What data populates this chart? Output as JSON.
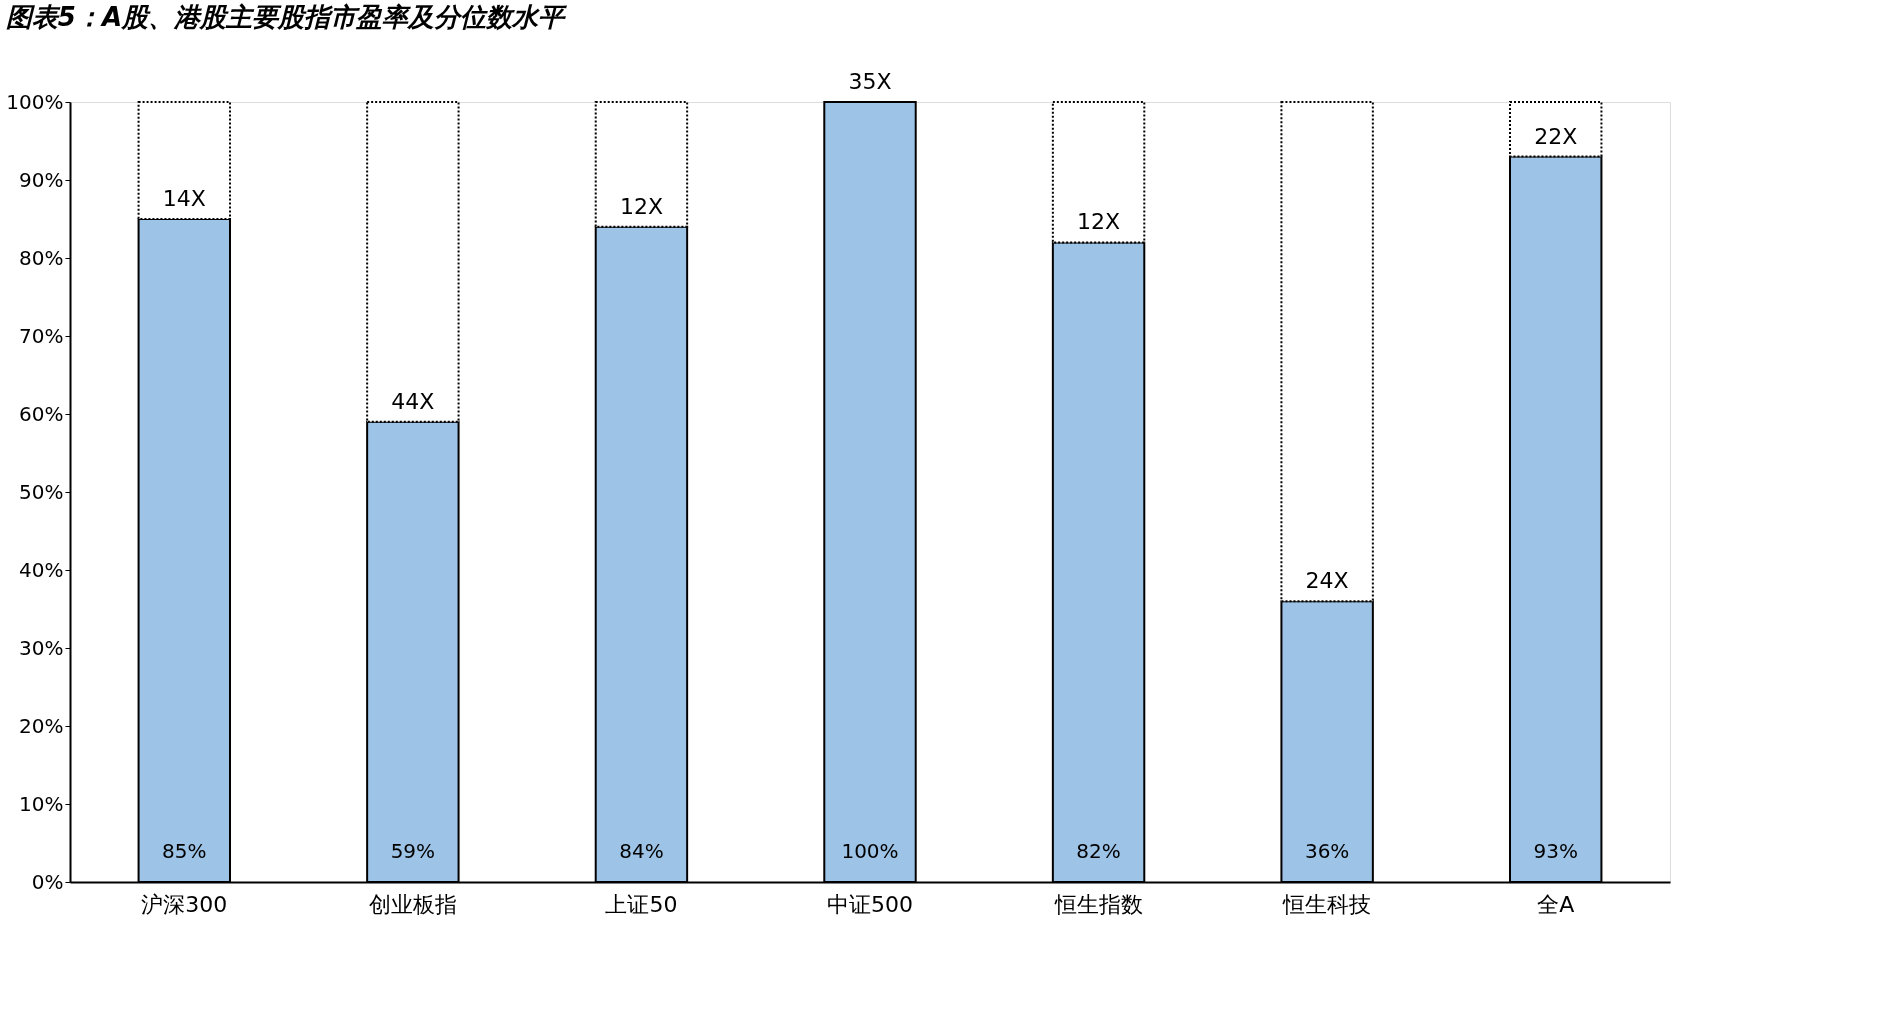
{
  "chart_data": {
    "type": "bar",
    "stacked": true,
    "title": "图表5：A股、港股主要股指市盈率及分位数水平",
    "categories": [
      "沪深300",
      "创业板指",
      "上证50",
      "中证500",
      "恒生指数",
      "恒生科技",
      "全A"
    ],
    "series": [
      {
        "color": "#9dc3e6",
        "line_style": "solid",
        "values": [
          85,
          59,
          84,
          100,
          82,
          36,
          93
        ],
        "value_labels": [
          "85%",
          "59%",
          "84%",
          "100%",
          "82%",
          "36%",
          "93%"
        ]
      },
      {
        "color": "#ffffff",
        "line_style": "dotted",
        "values": [
          15,
          41,
          16,
          0,
          18,
          64,
          7
        ]
      }
    ],
    "annotations": [
      {
        "text": "14X",
        "x": "沪深300",
        "y": 85
      },
      {
        "text": "44X",
        "x": "创业板指",
        "y": 59
      },
      {
        "text": "12X",
        "x": "上证50",
        "y": 84
      },
      {
        "text": "35X",
        "x": "中证500",
        "y": 100
      },
      {
        "text": "12X",
        "x": "恒生指数",
        "y": 82
      },
      {
        "text": "24X",
        "x": "恒生科技",
        "y": 36
      },
      {
        "text": "22X",
        "x": "全A",
        "y": 93
      }
    ],
    "ylim": [
      0,
      100
    ],
    "yticks": [
      {
        "value": 0,
        "label": "0%"
      },
      {
        "value": 10,
        "label": "10%"
      },
      {
        "value": 20,
        "label": "20%"
      },
      {
        "value": 30,
        "label": "30%"
      },
      {
        "value": 40,
        "label": "40%"
      },
      {
        "value": 50,
        "label": "50%"
      },
      {
        "value": 60,
        "label": "60%"
      },
      {
        "value": 70,
        "label": "70%"
      },
      {
        "value": 80,
        "label": "80%"
      },
      {
        "value": 90,
        "label": "90%"
      },
      {
        "value": 100,
        "label": "100%"
      }
    ]
  }
}
